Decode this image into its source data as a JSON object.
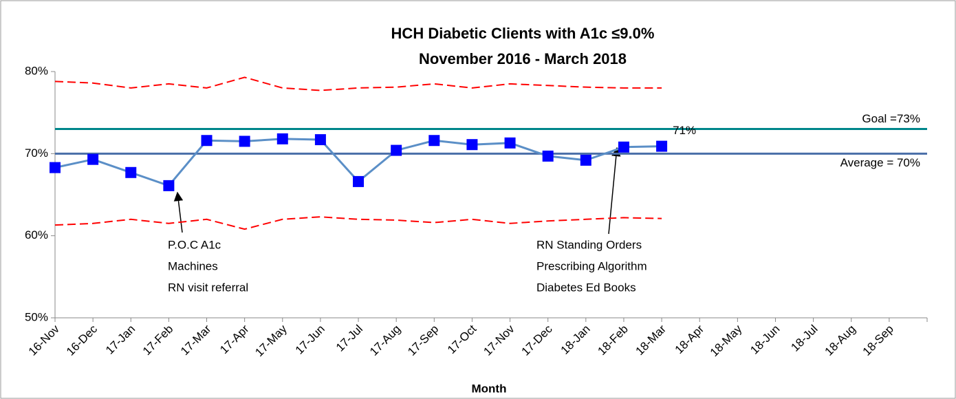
{
  "chart_data": {
    "type": "line",
    "title": "HCH Diabetic Clients with  A1c ≤9.0%",
    "subtitle": "November 2016 - March 2018",
    "x_label": "Month",
    "categories": [
      "16-Nov",
      "16-Dec",
      "17-Jan",
      "17-Feb",
      "17-Mar",
      "17-Apr",
      "17-May",
      "17-Jun",
      "17-Jul",
      "17-Aug",
      "17-Sep",
      "17-Oct",
      "17-Nov",
      "17-Dec",
      "18-Jan",
      "18-Feb",
      "18-Mar",
      "18-Apr",
      "18-May",
      "18-Jun",
      "18-Jul",
      "18-Aug",
      "18-Sep"
    ],
    "ylim": [
      50,
      80
    ],
    "yticks": [
      {
        "value": 50,
        "label": "50%"
      },
      {
        "value": 60,
        "label": "60%"
      },
      {
        "value": 70,
        "label": "70%"
      },
      {
        "value": 80,
        "label": "80%"
      }
    ],
    "series": [
      {
        "color": "#ff0000",
        "dashed": true,
        "values": [
          78.8,
          78.6,
          78.0,
          78.5,
          78.0,
          79.3,
          78.0,
          77.7,
          78.0,
          78.1,
          78.5,
          78.0,
          78.5,
          78.3,
          78.1,
          78.0,
          78.0,
          null,
          null,
          null,
          null,
          null,
          null
        ]
      },
      {
        "color": "#ff0000",
        "dashed": true,
        "values": [
          61.3,
          61.5,
          62.0,
          61.5,
          62.0,
          60.8,
          62.0,
          62.3,
          62.0,
          61.9,
          61.6,
          62.0,
          61.5,
          61.8,
          62.0,
          62.2,
          62.1,
          null,
          null,
          null,
          null,
          null,
          null
        ]
      },
      {
        "color": "#5b8fc7",
        "marker_color": "#0000ff",
        "markers": true,
        "values": [
          68.3,
          69.3,
          67.7,
          66.1,
          71.6,
          71.5,
          71.8,
          71.7,
          66.6,
          70.4,
          71.6,
          71.1,
          71.3,
          69.7,
          69.2,
          70.8,
          70.9,
          null,
          null,
          null,
          null,
          null,
          null
        ],
        "value_labels": [
          null,
          null,
          null,
          null,
          null,
          null,
          null,
          null,
          null,
          null,
          null,
          null,
          null,
          null,
          null,
          null,
          "71%",
          null,
          null,
          null,
          null,
          null,
          null
        ]
      }
    ],
    "reference_lines": [
      {
        "value": 73,
        "label": "Goal =73%",
        "color": "#00868b"
      },
      {
        "value": 70,
        "label": "Average = 70%",
        "color": "#4a6ea8"
      }
    ],
    "annotations": [
      {
        "lines": [
          "P.O.C A1c",
          "Machines",
          "RN visit referral"
        ]
      },
      {
        "lines": [
          "RN Standing Orders",
          "Prescribing Algorithm",
          "Diabetes Ed Books"
        ]
      }
    ]
  }
}
